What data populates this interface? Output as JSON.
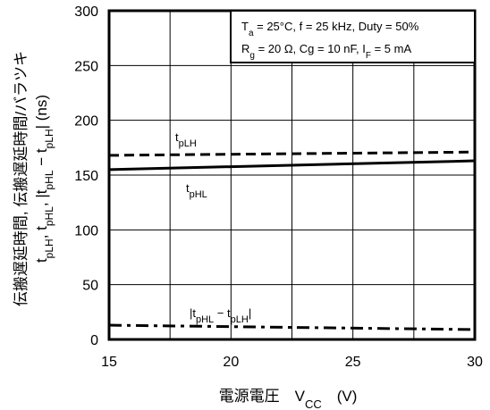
{
  "chart_data": {
    "type": "line",
    "xlabel": "電源電圧　V<sub>CC</sub>　(V)",
    "xlabel_parts": [
      "電源電圧",
      "V",
      "CC",
      "(V)"
    ],
    "ylabel_line1": "伝搬遅延時間, 伝搬遅延時間/バラツキ",
    "ylabel_line2_parts": [
      "t",
      "pLH",
      ", t",
      "pHL",
      ", |t",
      "pHL",
      " − t",
      "pLH",
      "|  (ns)"
    ],
    "xlim": [
      15,
      30
    ],
    "ylim": [
      0,
      300
    ],
    "x_ticks": [
      15,
      20,
      25,
      30
    ],
    "y_ticks": [
      0,
      50,
      100,
      150,
      200,
      250,
      300
    ],
    "grid": true,
    "conditions_line1": "T_a = 25°C, f = 25 kHz, Duty = 50%",
    "conditions_line1_parts": [
      "T",
      "a",
      " = 25°C, f = 25 kHz, Duty = 50%"
    ],
    "conditions_line2_parts": [
      "R",
      "g",
      " = 20 Ω, Cg = 10 nF, I",
      "F",
      " = 5 mA"
    ],
    "series": [
      {
        "name": "tpLH",
        "label_parts": [
          "t",
          "pLH"
        ],
        "style": "dashed",
        "x": [
          15,
          30
        ],
        "y": [
          168,
          171
        ]
      },
      {
        "name": "tpHL",
        "label_parts": [
          "t",
          "pHL"
        ],
        "style": "solid",
        "x": [
          15,
          30
        ],
        "y": [
          155,
          163
        ]
      },
      {
        "name": "|tpHL − tpLH|",
        "label_parts": [
          "|t",
          "pHL",
          " − t",
          "pLH",
          "|"
        ],
        "style": "dashdot",
        "x": [
          15,
          30
        ],
        "y": [
          13,
          9
        ]
      }
    ]
  },
  "colors": {
    "line": "#000000",
    "background": "#ffffff"
  }
}
